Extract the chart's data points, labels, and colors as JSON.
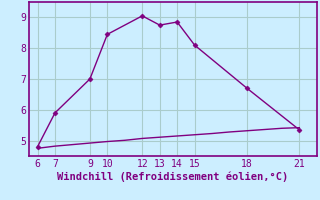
{
  "xlabel": "Windchill (Refroidissement éolien,°C)",
  "x_main": [
    6,
    7,
    9,
    10,
    12,
    13,
    14,
    15,
    18,
    21
  ],
  "y_main": [
    4.8,
    5.9,
    7.0,
    8.45,
    9.05,
    8.75,
    8.85,
    8.1,
    6.7,
    5.35
  ],
  "x_flat": [
    6,
    7,
    8,
    9,
    10,
    11,
    12,
    13,
    14,
    15,
    16,
    17,
    18,
    19,
    20,
    21
  ],
  "y_flat": [
    4.75,
    4.82,
    4.87,
    4.92,
    4.97,
    5.01,
    5.07,
    5.11,
    5.15,
    5.19,
    5.23,
    5.28,
    5.32,
    5.36,
    5.4,
    5.42
  ],
  "line_color": "#800080",
  "bg_color": "#cceeff",
  "grid_color": "#aacccc",
  "tick_color": "#800080",
  "label_color": "#800080",
  "spine_color": "#800080",
  "xlim": [
    5.5,
    22.0
  ],
  "ylim": [
    4.5,
    9.5
  ],
  "xticks": [
    6,
    7,
    9,
    10,
    12,
    13,
    14,
    15,
    18,
    21
  ],
  "yticks": [
    5,
    6,
    7,
    8,
    9
  ],
  "marker_size": 2.5,
  "line_width": 1.0,
  "font_size": 7.0,
  "xlabel_size": 7.5
}
